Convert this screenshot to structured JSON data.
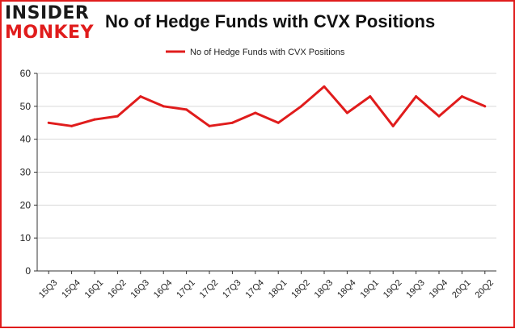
{
  "logo": {
    "line1": "INSIDER",
    "line2": "MONKEY"
  },
  "header": {
    "title": "No of Hedge Funds with CVX Positions"
  },
  "colors": {
    "series": "#e01c1c",
    "border": "#e01c1c",
    "grid": "#d9d9d9",
    "axis": "#333333"
  },
  "chart_data": {
    "type": "line",
    "title": "No of Hedge Funds with CVX Positions",
    "xlabel": "",
    "ylabel": "",
    "ylim": [
      0,
      60
    ],
    "yticks": [
      0,
      10,
      20,
      30,
      40,
      50,
      60
    ],
    "grid": true,
    "legend_position": "top",
    "categories": [
      "15Q3",
      "15Q4",
      "16Q1",
      "16Q2",
      "16Q3",
      "16Q4",
      "17Q1",
      "17Q2",
      "17Q3",
      "17Q4",
      "18Q1",
      "18Q2",
      "18Q3",
      "18Q4",
      "19Q1",
      "19Q2",
      "19Q3",
      "19Q4",
      "20Q1",
      "20Q2"
    ],
    "series": [
      {
        "name": "No of Hedge Funds with CVX Positions",
        "values": [
          45,
          44,
          46,
          47,
          53,
          50,
          49,
          44,
          45,
          48,
          45,
          50,
          56,
          48,
          53,
          44,
          53,
          47,
          53,
          50
        ]
      }
    ]
  }
}
